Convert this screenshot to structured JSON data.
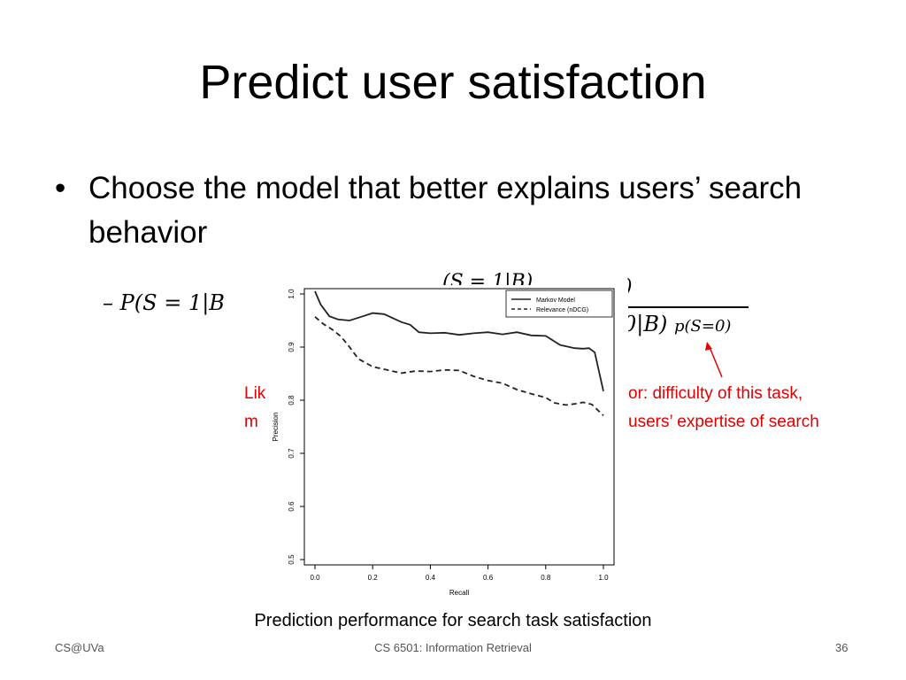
{
  "slide": {
    "title": "Predict user satisfaction",
    "bullet": "Choose the model that better explains users’ search behavior",
    "formula_left": "– P(S = 1|B",
    "formula_top_right": "(S = 1|B)",
    "formula_top_right_tail": ")",
    "formula_denominator": "0|B)",
    "formula_sub": "p(S=0)",
    "red_line1_left": "Lik",
    "red_line1_right": "or: difficulty of this task,",
    "red_line2_left": "m",
    "red_line2_right": "users’ expertise of search",
    "caption": "Prediction performance for search task satisfaction",
    "footer_left": "CS@UVa",
    "footer_center": "CS 6501: Information Retrieval",
    "footer_right": "36"
  },
  "chart_data": {
    "type": "line",
    "xlabel": "Recall",
    "ylabel": "Precision",
    "xlim": [
      0.0,
      1.0
    ],
    "ylim": [
      0.5,
      1.0
    ],
    "xticks": [
      "0.0",
      "0.2",
      "0.4",
      "0.6",
      "0.8",
      "1.0"
    ],
    "yticks": [
      "0.5",
      "0.6",
      "0.7",
      "0.8",
      "0.9",
      "1.0"
    ],
    "legend_position": "top-right",
    "series": [
      {
        "name": "Markov Model",
        "style": "solid",
        "x": [
          0.0,
          0.02,
          0.05,
          0.08,
          0.12,
          0.16,
          0.2,
          0.24,
          0.28,
          0.3,
          0.33,
          0.36,
          0.4,
          0.45,
          0.5,
          0.55,
          0.6,
          0.65,
          0.7,
          0.75,
          0.8,
          0.85,
          0.9,
          0.93,
          0.95,
          0.97,
          1.0
        ],
        "y": [
          1.005,
          0.98,
          0.958,
          0.952,
          0.95,
          0.957,
          0.964,
          0.962,
          0.952,
          0.947,
          0.942,
          0.928,
          0.926,
          0.927,
          0.923,
          0.926,
          0.928,
          0.924,
          0.928,
          0.922,
          0.921,
          0.904,
          0.898,
          0.897,
          0.898,
          0.89,
          0.817
        ]
      },
      {
        "name": "Relevance (nDCG)",
        "style": "dashed",
        "x": [
          0.0,
          0.03,
          0.06,
          0.09,
          0.12,
          0.15,
          0.2,
          0.25,
          0.3,
          0.35,
          0.4,
          0.45,
          0.5,
          0.55,
          0.6,
          0.65,
          0.7,
          0.75,
          0.8,
          0.83,
          0.87,
          0.9,
          0.93,
          0.96,
          1.0
        ],
        "y": [
          0.957,
          0.943,
          0.933,
          0.92,
          0.9,
          0.878,
          0.863,
          0.857,
          0.851,
          0.855,
          0.854,
          0.857,
          0.856,
          0.845,
          0.837,
          0.832,
          0.82,
          0.812,
          0.805,
          0.795,
          0.791,
          0.793,
          0.796,
          0.792,
          0.771
        ]
      }
    ]
  }
}
